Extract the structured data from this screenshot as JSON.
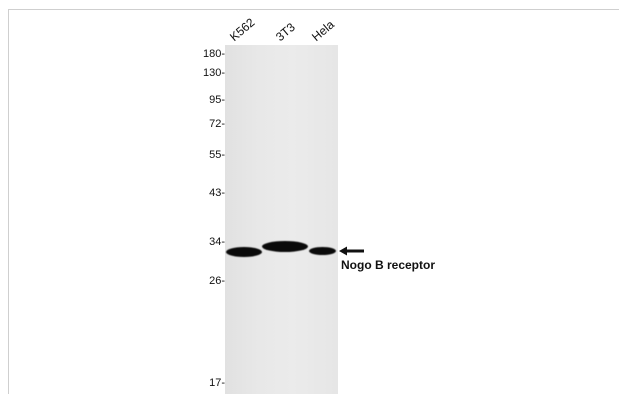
{
  "lanes": [
    "K562",
    "3T3",
    "Hela"
  ],
  "markers": [
    "180-",
    "130-",
    "95-",
    "72-",
    "55-",
    "43-",
    "34-",
    "26-",
    "17-"
  ],
  "annotation": "Nogo B receptor"
}
